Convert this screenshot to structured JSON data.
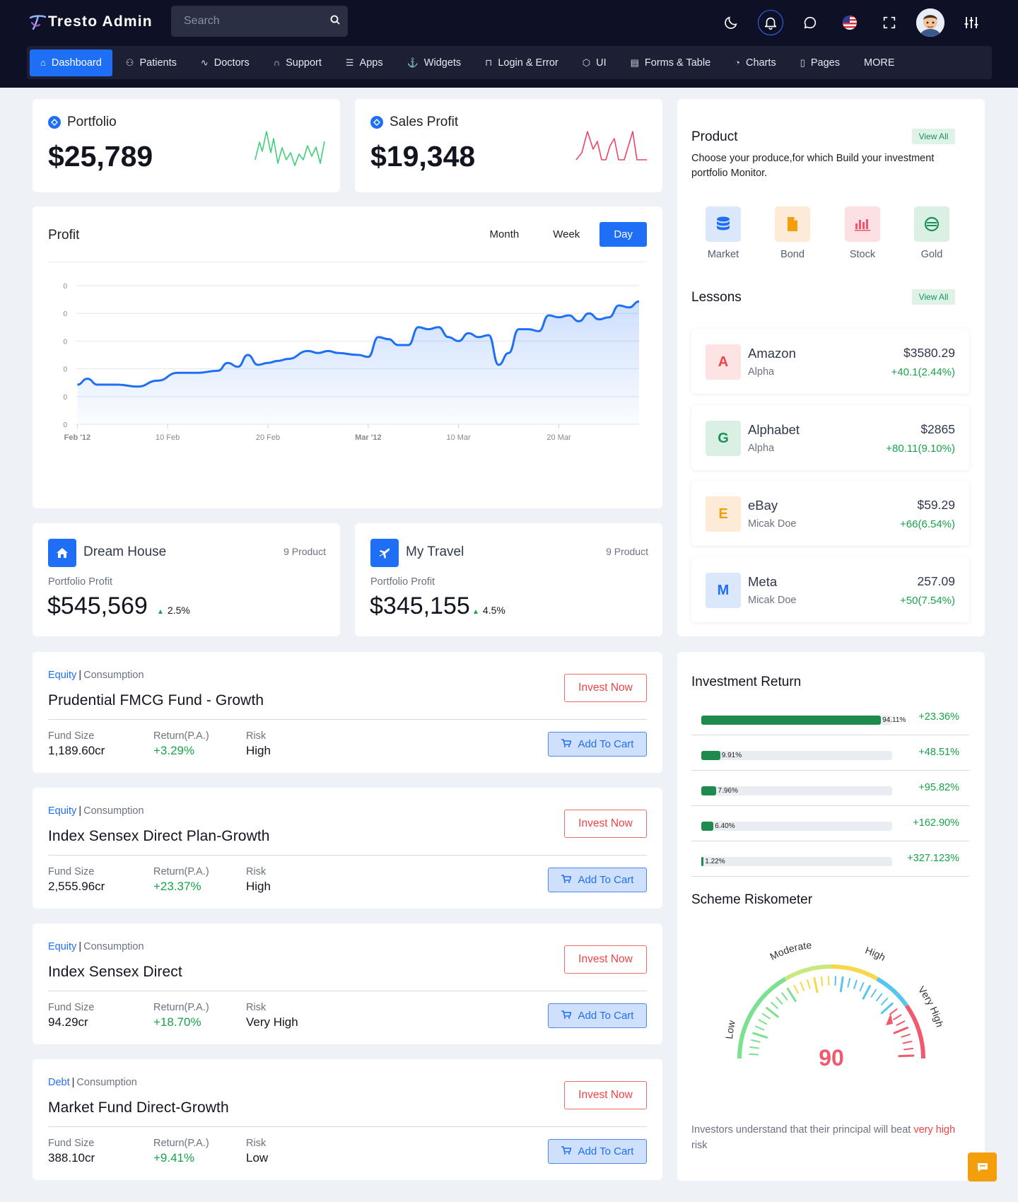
{
  "app": {
    "title": "Tresto Admin"
  },
  "search": {
    "placeholder": "Search"
  },
  "header_icons": [
    "moon-icon",
    "bell-icon",
    "chat-icon",
    "us-flag-icon",
    "fullscreen-icon",
    "avatar",
    "sliders-icon"
  ],
  "nav": [
    {
      "label": "Dashboard",
      "icon": "home-icon",
      "active": true
    },
    {
      "label": "Patients",
      "icon": "users-icon"
    },
    {
      "label": "Doctors",
      "icon": "activity-icon"
    },
    {
      "label": "Support",
      "icon": "headphones-icon"
    },
    {
      "label": "Apps",
      "icon": "database-icon"
    },
    {
      "label": "Widgets",
      "icon": "anchor-icon"
    },
    {
      "label": "Login & Error",
      "icon": "lock-icon"
    },
    {
      "label": "UI",
      "icon": "box-icon"
    },
    {
      "label": "Forms & Table",
      "icon": "table-icon"
    },
    {
      "label": "Charts",
      "icon": "pie-icon"
    },
    {
      "label": "Pages",
      "icon": "file-icon"
    },
    {
      "label": "MORE",
      "icon": ""
    }
  ],
  "stats": [
    {
      "title": "Portfolio",
      "value": "$25,789",
      "color": "#3ecf7a"
    },
    {
      "title": "Sales Profit",
      "value": "$19,348",
      "color": "#ee4466"
    }
  ],
  "profit": {
    "title": "Profit",
    "tabs": [
      "Month",
      "Week",
      "Day"
    ],
    "active_tab": "Day"
  },
  "chart_data": {
    "type": "area",
    "title": "Profit",
    "x_tick_labels": [
      "Feb '12",
      "10 Feb",
      "20 Feb",
      "Mar '12",
      "10 Mar",
      "20 Mar"
    ],
    "y_tick_labels": [
      "0",
      "0",
      "0",
      "0",
      "0",
      "0"
    ],
    "x": [
      "2012-02-01",
      "2012-02-02",
      "2012-02-03",
      "2012-02-05",
      "2012-02-07",
      "2012-02-09",
      "2012-02-11",
      "2012-02-12",
      "2012-02-13",
      "2012-02-15",
      "2012-02-16",
      "2012-02-17",
      "2012-02-18",
      "2012-02-19",
      "2012-02-20",
      "2012-02-21",
      "2012-02-22",
      "2012-02-24",
      "2012-02-25",
      "2012-02-26",
      "2012-02-27",
      "2012-02-29",
      "2012-03-01",
      "2012-03-02",
      "2012-03-03",
      "2012-03-04",
      "2012-03-05",
      "2012-03-06",
      "2012-03-07",
      "2012-03-08",
      "2012-03-09",
      "2012-03-10",
      "2012-03-11",
      "2012-03-12",
      "2012-03-13",
      "2012-03-14",
      "2012-03-15",
      "2012-03-16",
      "2012-03-17",
      "2012-03-18",
      "2012-03-19",
      "2012-03-20",
      "2012-03-21",
      "2012-03-22",
      "2012-03-23",
      "2012-03-24",
      "2012-03-25",
      "2012-03-26",
      "2012-03-27",
      "2012-03-28"
    ],
    "values": [
      20,
      23,
      20,
      20,
      19,
      22,
      26,
      26,
      26,
      27,
      31,
      29,
      35,
      30,
      31,
      32,
      33,
      37,
      36,
      37,
      36,
      35,
      34,
      44,
      43,
      40,
      40,
      49,
      48,
      49,
      44,
      42,
      46,
      44,
      45,
      30,
      36,
      48,
      48,
      47,
      55,
      54,
      55,
      52,
      56,
      53,
      54,
      60,
      59,
      62
    ],
    "ylim": [
      0,
      70
    ],
    "grid": true,
    "color": "#1e6ff5"
  },
  "portfolios": [
    {
      "title": "Dream House",
      "count": "9 Product",
      "label": "Portfolio Profit",
      "value": "$545,569",
      "change": "2.5%",
      "icon": "home-icon"
    },
    {
      "title": "My Travel",
      "count": "9 Product",
      "label": "Portfolio Profit",
      "value": "$345,155",
      "change": "4.5%",
      "icon": "plane-icon"
    }
  ],
  "funds": [
    {
      "tag1": "Equity",
      "tag2": "Consumption",
      "name": "Prudential FMCG Fund - Growth",
      "size_label": "Fund Size",
      "size": "1,189.60cr",
      "return_label": "Return(P.A.)",
      "return": "+3.29%",
      "risk_label": "Risk",
      "risk": "High",
      "invest": "Invest Now",
      "cart": "Add To Cart"
    },
    {
      "tag1": "Equity",
      "tag2": "Consumption",
      "name": "Index Sensex Direct Plan-Growth",
      "size_label": "Fund Size",
      "size": "2,555.96cr",
      "return_label": "Return(P.A.)",
      "return": "+23.37%",
      "risk_label": "Risk",
      "risk": "High",
      "invest": "Invest Now",
      "cart": "Add To Cart"
    },
    {
      "tag1": "Equity",
      "tag2": "Consumption",
      "name": "Index Sensex Direct",
      "size_label": "Fund Size",
      "size": "94.29cr",
      "return_label": "Return(P.A.)",
      "return": "+18.70%",
      "risk_label": "Risk",
      "risk": "Very High",
      "invest": "Invest Now",
      "cart": "Add To Cart"
    },
    {
      "tag1": "Debt",
      "tag2": "Consumption",
      "name": "Market Fund Direct-Growth",
      "size_label": "Fund Size",
      "size": "388.10cr",
      "return_label": "Return(P.A.)",
      "return": "+9.41%",
      "risk_label": "Risk",
      "risk": "Low",
      "invest": "Invest Now",
      "cart": "Add To Cart"
    }
  ],
  "product": {
    "title": "Product",
    "view_all": "View All",
    "description": "Choose your produce,for which Build your investment portfolio Monitor.",
    "items": [
      {
        "label": "Market",
        "icon": "database-icon",
        "bg": "#dbe8fb",
        "fg": "#1e6ff5"
      },
      {
        "label": "Bond",
        "icon": "document-icon",
        "bg": "#fdebd7",
        "fg": "#f59e0b"
      },
      {
        "label": "Stock",
        "icon": "bar-chart-icon",
        "bg": "#fde0e3",
        "fg": "#f0556b"
      },
      {
        "label": "Gold",
        "icon": "coin-icon",
        "bg": "#daf0e4",
        "fg": "#19925b"
      }
    ]
  },
  "lessons": {
    "title": "Lessons",
    "view_all": "View All",
    "items": [
      {
        "letter": "A",
        "name": "Amazon",
        "sub": "Alpha",
        "price": "$3580.29",
        "change": "+40.1(2.44%)",
        "bg": "#fde3e3",
        "fg": "#ef4444"
      },
      {
        "letter": "G",
        "name": "Alphabet",
        "sub": "Alpha",
        "price": "$2865",
        "change": "+80.11(9.10%)",
        "bg": "#daf0e4",
        "fg": "#19925b"
      },
      {
        "letter": "E",
        "name": "eBay",
        "sub": "Micak Doe",
        "price": "$59.29",
        "change": "+66(6.54%)",
        "bg": "#fdebd7",
        "fg": "#f59e0b"
      },
      {
        "letter": "M",
        "name": "Meta",
        "sub": "Micak Doe",
        "price": "257.09",
        "change": "+50(7.54%)",
        "bg": "#dbe8fb",
        "fg": "#1e6ff5"
      }
    ]
  },
  "investment_return": {
    "title": "Investment Return",
    "rows": [
      {
        "pct": "94.11%",
        "value": 0.9411,
        "ret": "+23.36%"
      },
      {
        "pct": "9.91%",
        "value": 0.0991,
        "ret": "+48.51%"
      },
      {
        "pct": "7.96%",
        "value": 0.0796,
        "ret": "+95.82%"
      },
      {
        "pct": "6.40%",
        "value": 0.064,
        "ret": "+162.90%"
      },
      {
        "pct": "1.22%",
        "value": 0.0122,
        "ret": "+327.123%"
      }
    ]
  },
  "riskometer": {
    "title": "Scheme Riskometer",
    "value": "90",
    "labels": [
      "Low",
      "Moderate",
      "High",
      "Very High"
    ],
    "note_prefix": "Investors understand that their principal will beat",
    "note_highlight": "very high",
    "note_suffix": "risk"
  }
}
